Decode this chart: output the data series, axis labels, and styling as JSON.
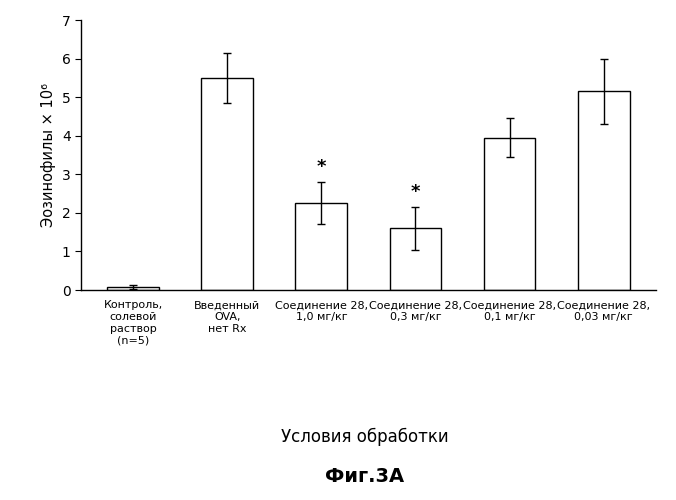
{
  "categories": [
    "Контроль,\nсолевой\nраствор\n(n=5)",
    "Введенный\nOVA,\nнет Rx",
    "Соединение 28,\n1,0 мг/кг",
    "Соединение 28,\n0,3 мг/кг",
    "Соединение 28,\n0,1 мг/кг",
    "Соединение 28,\n0,03 мг/кг"
  ],
  "values": [
    0.08,
    5.5,
    2.25,
    1.6,
    3.95,
    5.15
  ],
  "errors": [
    0.05,
    0.65,
    0.55,
    0.55,
    0.5,
    0.85
  ],
  "bar_color": "#ffffff",
  "bar_edgecolor": "#000000",
  "bar_width": 0.55,
  "ylim": [
    0,
    7
  ],
  "yticks": [
    0,
    1,
    2,
    3,
    4,
    5,
    6,
    7
  ],
  "ylabel": "Эозинофилы × 10⁶",
  "xlabel": "Условия обработки",
  "title": "Фиг.3А",
  "significance": [
    false,
    false,
    true,
    true,
    false,
    false
  ],
  "background_color": "#ffffff",
  "figure_width": 6.76,
  "figure_height": 5.0,
  "dpi": 100
}
